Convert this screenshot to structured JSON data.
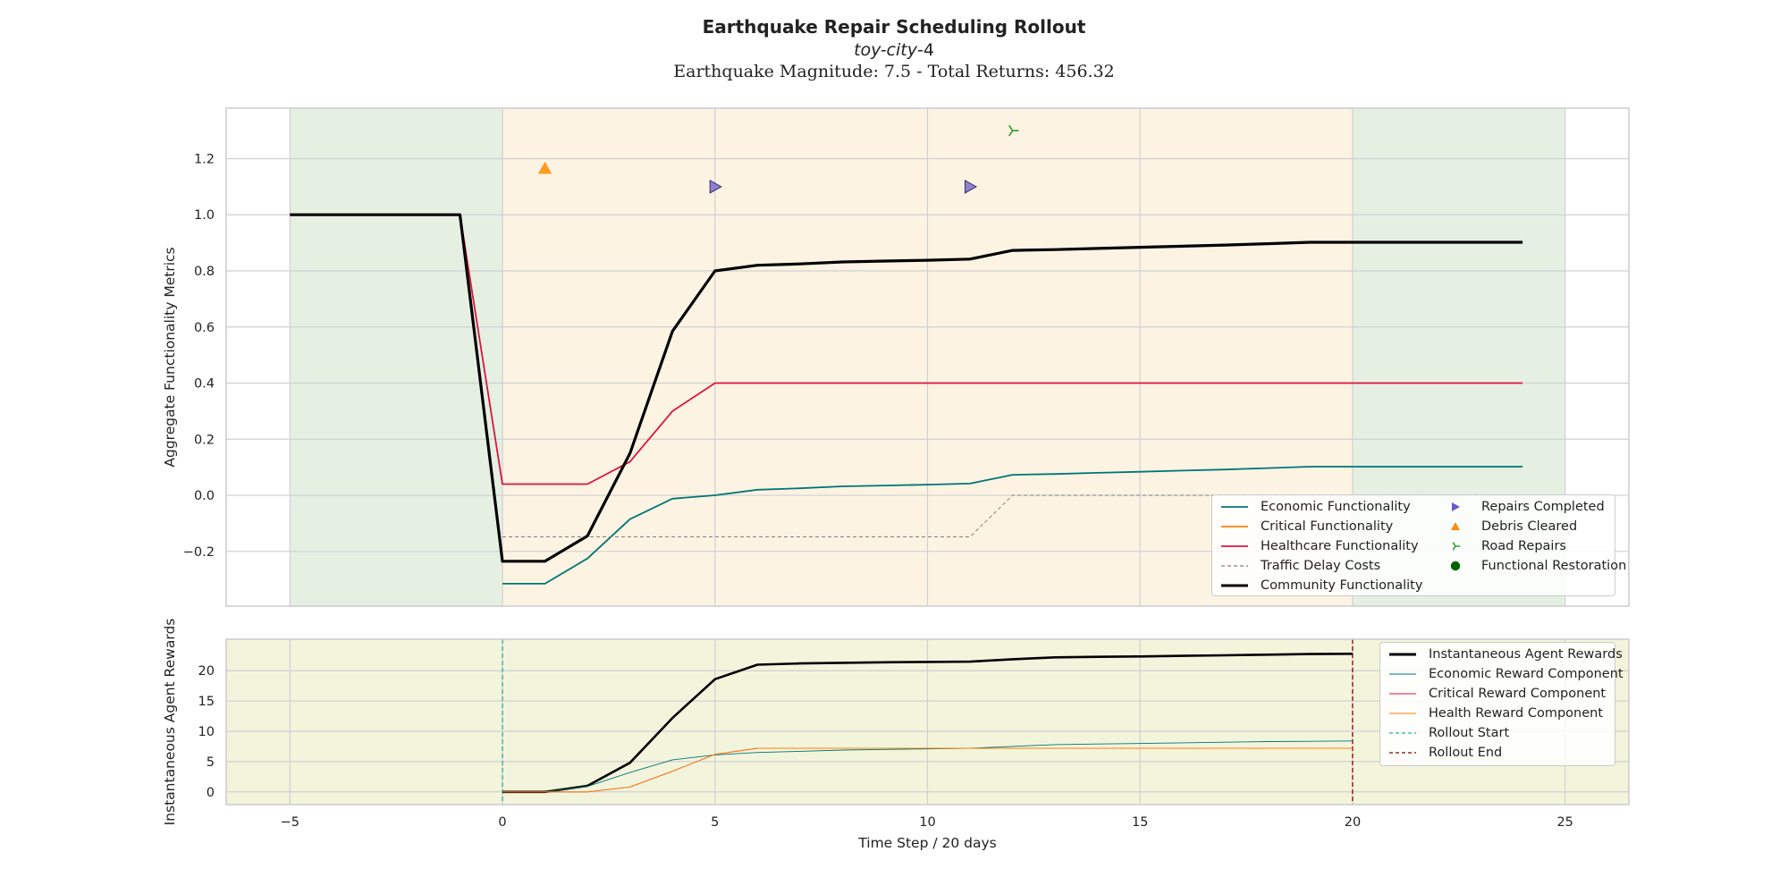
{
  "title": "Earthquake Repair Scheduling Rollout",
  "subtitle_italic": "toy-city",
  "subtitle_suffix": "-4",
  "subtitle2": "Earthquake Magnitude: 7.5 - Total Returns: 456.32",
  "colors": {
    "economic": "#007575",
    "critical": "#ff7f0e",
    "healthcare": "#dc143c",
    "traffic": "#808080",
    "community": "#000000",
    "repairs_marker": "#6a5acd",
    "debris_marker": "#ff8c00",
    "road_marker": "#2ca02c",
    "restoration_marker": "#006400",
    "rollout_start": "#20b2aa",
    "rollout_end": "#8b0000",
    "pre_post_shade": "#e5f0e3",
    "repair_shade": "#fdf3e3",
    "reward_bg": "#f3f4dc"
  },
  "chart_data": [
    {
      "type": "line",
      "ylabel": "Aggregate Functionality Metrics",
      "xlim": [
        -6.5,
        26.5
      ],
      "ylim": [
        -0.395,
        1.38
      ],
      "xticks": [
        -5,
        0,
        5,
        10,
        15,
        20,
        25
      ],
      "yticks": [
        -0.2,
        0.0,
        0.2,
        0.4,
        0.6,
        0.8,
        1.0,
        1.2
      ],
      "ytick_labels": [
        "−0.2",
        "0.0",
        "0.2",
        "0.4",
        "0.6",
        "0.8",
        "1.0",
        "1.2"
      ],
      "grid": true,
      "shaded_regions": [
        {
          "from": -5,
          "to": 0,
          "kind": "pre"
        },
        {
          "from": 0,
          "to": 20,
          "kind": "repair"
        },
        {
          "from": 20,
          "to": 25,
          "kind": "post"
        }
      ],
      "series": [
        {
          "name": "Economic Functionality",
          "color_key": "economic",
          "style": "solid",
          "width": 1.8,
          "x": [
            0,
            1,
            2,
            3,
            4,
            5,
            6,
            7,
            8,
            9,
            10,
            11,
            12,
            13,
            14,
            15,
            16,
            17,
            18,
            19,
            20,
            21,
            22,
            23,
            24
          ],
          "y": [
            -0.315,
            -0.315,
            -0.225,
            -0.085,
            -0.012,
            0.0,
            0.02,
            0.025,
            0.032,
            0.035,
            0.038,
            0.042,
            0.073,
            0.076,
            0.08,
            0.084,
            0.088,
            0.092,
            0.097,
            0.102,
            0.102,
            0.102,
            0.102,
            0.102,
            0.102
          ]
        },
        {
          "name": "Healthcare Functionality",
          "color_key": "healthcare",
          "style": "solid",
          "width": 1.8,
          "x": [
            -5,
            -4,
            -3,
            -2,
            -1,
            0,
            1,
            2,
            3,
            4,
            5,
            6,
            7,
            8,
            9,
            10,
            11,
            12,
            13,
            14,
            15,
            16,
            17,
            18,
            19,
            20,
            21,
            22,
            23,
            24
          ],
          "y": [
            1.0,
            1.0,
            1.0,
            1.0,
            1.0,
            0.04,
            0.04,
            0.04,
            0.12,
            0.3,
            0.4,
            0.4,
            0.4,
            0.4,
            0.4,
            0.4,
            0.4,
            0.4,
            0.4,
            0.4,
            0.4,
            0.4,
            0.4,
            0.4,
            0.4,
            0.4,
            0.4,
            0.4,
            0.4,
            0.4
          ]
        },
        {
          "name": "Traffic Delay Costs",
          "color_key": "traffic",
          "style": "dashed",
          "width": 1.0,
          "x": [
            0,
            1,
            2,
            3,
            4,
            5,
            6,
            7,
            8,
            9,
            10,
            11,
            12,
            13,
            14,
            15,
            16,
            17,
            18,
            19,
            20,
            21,
            22,
            23,
            24
          ],
          "y": [
            -0.148,
            -0.148,
            -0.148,
            -0.148,
            -0.148,
            -0.148,
            -0.148,
            -0.148,
            -0.148,
            -0.148,
            -0.148,
            -0.148,
            0.0,
            0.0,
            0.0,
            0.0,
            0.0,
            0.0,
            0.0,
            0.0,
            0.0,
            0.0,
            0.0,
            0.0,
            0.0
          ]
        },
        {
          "name": "Community Functionality",
          "color_key": "community",
          "style": "solid",
          "width": 3.2,
          "x": [
            -5,
            -4,
            -3,
            -2,
            -1,
            0,
            1,
            2,
            3,
            4,
            5,
            6,
            7,
            8,
            9,
            10,
            11,
            12,
            13,
            14,
            15,
            16,
            17,
            18,
            19,
            20,
            21,
            22,
            23,
            24
          ],
          "y": [
            1.0,
            1.0,
            1.0,
            1.0,
            1.0,
            -0.235,
            -0.235,
            -0.145,
            0.15,
            0.585,
            0.8,
            0.82,
            0.825,
            0.832,
            0.835,
            0.838,
            0.842,
            0.873,
            0.876,
            0.88,
            0.884,
            0.888,
            0.892,
            0.897,
            0.902,
            0.902,
            0.902,
            0.902,
            0.902,
            0.902
          ]
        }
      ],
      "markers": [
        {
          "series": "Debris Cleared",
          "shape": "triangle-up",
          "color_key": "debris_marker",
          "points": [
            [
              1,
              1.165
            ]
          ]
        },
        {
          "series": "Repairs Completed",
          "shape": "triangle-right",
          "color_key": "repairs_marker",
          "points": [
            [
              5,
              1.1
            ],
            [
              11,
              1.1
            ]
          ]
        },
        {
          "series": "Road Repairs",
          "shape": "tri-right",
          "color_key": "road_marker",
          "points": [
            [
              12,
              1.3
            ]
          ]
        }
      ],
      "legend_loc": "lower right",
      "legend": [
        {
          "label": "Economic Functionality",
          "kind": "line",
          "color_key": "economic",
          "style": "solid"
        },
        {
          "label": "Critical Functionality",
          "kind": "line",
          "color_key": "critical",
          "style": "solid"
        },
        {
          "label": "Healthcare Functionality",
          "kind": "line",
          "color_key": "healthcare",
          "style": "solid"
        },
        {
          "label": "Traffic Delay Costs",
          "kind": "line",
          "color_key": "traffic",
          "style": "dashed"
        },
        {
          "label": "Community Functionality",
          "kind": "line",
          "color_key": "community",
          "style": "thick"
        },
        {
          "label": "Repairs Completed",
          "kind": "marker",
          "shape": "triangle-right",
          "color_key": "repairs_marker"
        },
        {
          "label": "Debris Cleared",
          "kind": "marker",
          "shape": "triangle-up",
          "color_key": "debris_marker"
        },
        {
          "label": "Road Repairs",
          "kind": "marker",
          "shape": "tri-right",
          "color_key": "road_marker"
        },
        {
          "label": "Functional Restoration",
          "kind": "marker",
          "shape": "circle",
          "color_key": "restoration_marker"
        }
      ]
    },
    {
      "type": "line",
      "ylabel": "Instantaneous Agent Rewards",
      "xlabel": "Time Step / 20 days",
      "xlim": [
        -6.5,
        26.5
      ],
      "ylim": [
        -2.1,
        25.2
      ],
      "xticks": [
        -5,
        0,
        5,
        10,
        15,
        20,
        25
      ],
      "yticks": [
        0,
        5,
        10,
        15,
        20
      ],
      "grid": true,
      "series": [
        {
          "name": "Instantaneous Agent Rewards",
          "color_key": "community",
          "style": "solid",
          "width": 2.6,
          "x": [
            0,
            1,
            2,
            3,
            4,
            5,
            6,
            7,
            8,
            9,
            10,
            11,
            12,
            13,
            14,
            15,
            16,
            17,
            18,
            19,
            20
          ],
          "y": [
            0.0,
            0.0,
            1.0,
            4.8,
            12.2,
            18.6,
            21.0,
            21.2,
            21.3,
            21.4,
            21.45,
            21.5,
            21.9,
            22.2,
            22.3,
            22.35,
            22.45,
            22.55,
            22.65,
            22.75,
            22.8
          ]
        },
        {
          "name": "Economic Reward Component",
          "color_key": "economic",
          "style": "solid",
          "width": 0.9,
          "x": [
            0,
            1,
            2,
            3,
            4,
            5,
            6,
            7,
            8,
            9,
            10,
            11,
            12,
            13,
            14,
            15,
            16,
            17,
            18,
            19,
            20
          ],
          "y": [
            0.0,
            0.0,
            0.9,
            3.2,
            5.3,
            6.1,
            6.5,
            6.7,
            6.9,
            7.0,
            7.1,
            7.2,
            7.5,
            7.8,
            7.9,
            8.0,
            8.1,
            8.2,
            8.3,
            8.35,
            8.4
          ]
        },
        {
          "name": "Critical Reward Component",
          "color_key": "healthcare",
          "style": "solid",
          "width": 0.9,
          "x": [
            0,
            1,
            2,
            3,
            4,
            5,
            6,
            7,
            8,
            9,
            10,
            11,
            12,
            13,
            14,
            15,
            16,
            17,
            18,
            19,
            20
          ],
          "y": [
            0.0,
            0.0,
            0.0,
            0.8,
            3.4,
            6.2,
            7.2,
            7.2,
            7.2,
            7.2,
            7.2,
            7.2,
            7.2,
            7.2,
            7.2,
            7.2,
            7.2,
            7.2,
            7.2,
            7.2,
            7.2
          ]
        },
        {
          "name": "Health Reward Component",
          "color_key": "critical",
          "style": "solid",
          "width": 0.9,
          "x": [
            0,
            1,
            2,
            3,
            4,
            5,
            6,
            7,
            8,
            9,
            10,
            11,
            12,
            13,
            14,
            15,
            16,
            17,
            18,
            19,
            20
          ],
          "y": [
            0.0,
            0.0,
            0.0,
            0.8,
            3.4,
            6.2,
            7.2,
            7.2,
            7.2,
            7.2,
            7.2,
            7.2,
            7.2,
            7.2,
            7.2,
            7.2,
            7.2,
            7.2,
            7.2,
            7.2,
            7.2
          ]
        }
      ],
      "vlines": [
        {
          "name": "Rollout Start",
          "x": 0,
          "color_key": "rollout_start"
        },
        {
          "name": "Rollout End",
          "x": 20,
          "color_key": "rollout_end"
        }
      ],
      "legend_loc": "upper right",
      "legend": [
        {
          "label": "Instantaneous Agent Rewards",
          "kind": "line",
          "color_key": "community",
          "style": "thick"
        },
        {
          "label": "Economic Reward Component",
          "kind": "line",
          "color_key": "economic",
          "style": "thin"
        },
        {
          "label": "Critical Reward Component",
          "kind": "line",
          "color_key": "healthcare",
          "style": "thin"
        },
        {
          "label": "Health Reward Component",
          "kind": "line",
          "color_key": "critical",
          "style": "thin"
        },
        {
          "label": "Rollout Start",
          "kind": "line",
          "color_key": "rollout_start",
          "style": "dashed"
        },
        {
          "label": "Rollout End",
          "kind": "line",
          "color_key": "rollout_end",
          "style": "dashed"
        }
      ]
    }
  ]
}
